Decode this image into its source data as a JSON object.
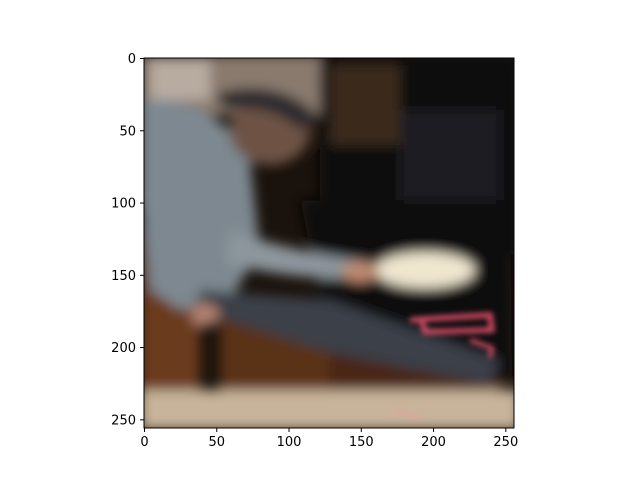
{
  "image_plot": {
    "x_range": [
      0,
      256
    ],
    "y_range": [
      0,
      256
    ],
    "y_axis_direction": "top-to-bottom",
    "x_ticks": [
      "0",
      "50",
      "100",
      "150",
      "200",
      "250"
    ],
    "y_ticks": [
      "0",
      "50",
      "100",
      "150",
      "200",
      "250"
    ],
    "x_tick_values": [
      0,
      50,
      100,
      150,
      200,
      250
    ],
    "y_tick_values": [
      0,
      50,
      100,
      150,
      200,
      250
    ],
    "scene": "blurry photo of a man in a gray jacket bending to put a dish into an open oven",
    "colors": {
      "background": "#ffffff",
      "oven_interior": "#0d0a08",
      "cabinet_wood": "#6b3a1e",
      "jacket_gray": "#7d8890",
      "heating_element": "#e0506a",
      "dish": "#efe6cf",
      "floor": "#c8b49a"
    }
  }
}
